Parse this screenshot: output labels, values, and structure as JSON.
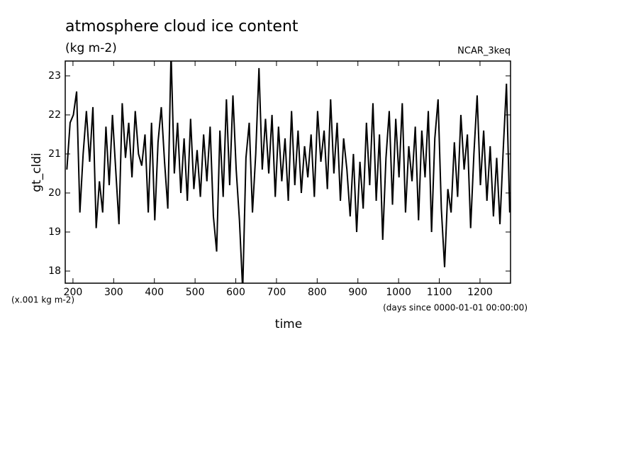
{
  "chart_data": {
    "type": "line",
    "title": "atmosphere cloud ice content",
    "subtitle": "(kg m-2)",
    "source": "NCAR_3keq",
    "y_label": "gt_cldi",
    "x_label": "time",
    "y_units": "(x.001 kg m-2)",
    "x_units": "(days since 0000-01-01 00:00:00)",
    "xlim": [
      181,
      1275
    ],
    "ylim": [
      17.69,
      23.38
    ],
    "xticks": [
      200,
      300,
      400,
      500,
      600,
      700,
      800,
      900,
      1000,
      1100,
      1200
    ],
    "yticks": [
      18,
      19,
      20,
      21,
      22,
      23
    ],
    "x": [
      185,
      193,
      201,
      209,
      217,
      225,
      233,
      241,
      249,
      257,
      265,
      273,
      281,
      289,
      297,
      305,
      313,
      321,
      329,
      337,
      345,
      353,
      361,
      369,
      377,
      385,
      393,
      401,
      409,
      417,
      425,
      433,
      441,
      449,
      457,
      465,
      473,
      481,
      489,
      497,
      505,
      513,
      521,
      529,
      537,
      545,
      553,
      561,
      569,
      577,
      585,
      593,
      601,
      609,
      617,
      625,
      633,
      641,
      649,
      657,
      665,
      673,
      681,
      689,
      697,
      705,
      713,
      721,
      729,
      737,
      745,
      753,
      761,
      769,
      777,
      785,
      793,
      801,
      809,
      817,
      825,
      833,
      841,
      849,
      857,
      865,
      873,
      881,
      889,
      897,
      905,
      913,
      921,
      929,
      937,
      945,
      953,
      961,
      969,
      977,
      985,
      993,
      1001,
      1009,
      1017,
      1025,
      1033,
      1041,
      1049,
      1057,
      1065,
      1073,
      1081,
      1089,
      1097,
      1105,
      1113,
      1121,
      1129,
      1137,
      1145,
      1153,
      1161,
      1169,
      1177,
      1185,
      1193,
      1201,
      1209,
      1217,
      1225,
      1233,
      1241,
      1249,
      1257,
      1265,
      1273
    ],
    "series": [
      {
        "color": "#000000",
        "values": [
          20.6,
          21.8,
          22.0,
          22.6,
          19.5,
          21.0,
          22.1,
          20.8,
          22.2,
          19.1,
          20.3,
          19.5,
          21.7,
          20.2,
          22.0,
          20.6,
          19.2,
          22.3,
          20.9,
          21.8,
          20.4,
          22.1,
          21.0,
          20.7,
          21.5,
          19.5,
          21.8,
          19.3,
          21.3,
          22.2,
          20.8,
          19.6,
          23.6,
          20.5,
          21.8,
          20.0,
          21.4,
          19.8,
          21.9,
          20.1,
          21.1,
          19.9,
          21.5,
          20.3,
          21.7,
          19.4,
          18.5,
          21.6,
          19.9,
          22.4,
          20.2,
          22.5,
          20.6,
          19.3,
          17.5,
          20.9,
          21.8,
          19.5,
          21.0,
          23.2,
          20.6,
          21.9,
          20.5,
          22.0,
          19.9,
          21.7,
          20.3,
          21.4,
          19.8,
          22.1,
          20.2,
          21.6,
          20.0,
          21.2,
          20.4,
          21.5,
          19.9,
          22.1,
          20.8,
          21.6,
          20.1,
          22.4,
          20.5,
          21.8,
          19.8,
          21.4,
          20.6,
          19.4,
          21.0,
          19.0,
          20.8,
          19.6,
          21.8,
          20.2,
          22.3,
          19.8,
          21.5,
          18.8,
          20.9,
          22.1,
          19.7,
          21.9,
          20.4,
          22.3,
          19.5,
          21.2,
          20.3,
          21.7,
          19.3,
          21.6,
          20.4,
          22.1,
          19.0,
          21.4,
          22.4,
          19.6,
          18.1,
          20.1,
          19.5,
          21.3,
          19.9,
          22.0,
          20.6,
          21.5,
          19.1,
          21.0,
          22.5,
          20.2,
          21.6,
          19.8,
          21.2,
          19.4,
          20.9,
          19.2,
          21.1,
          22.8,
          19.5
        ]
      }
    ]
  }
}
